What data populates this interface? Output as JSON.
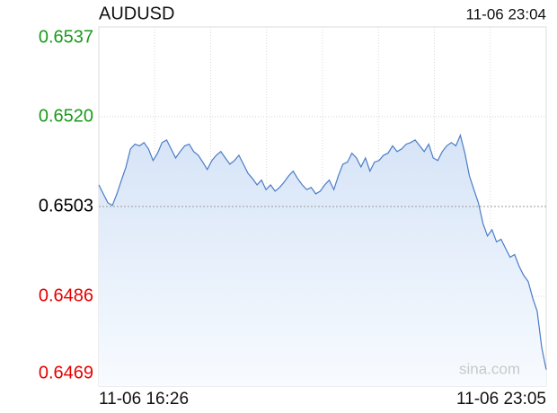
{
  "chart_data": {
    "type": "line",
    "title": "AUDUSD",
    "subtitle": "11-06 23:04",
    "watermark": "sina.com",
    "categories": [
      "11-06 16:26",
      null,
      null,
      null,
      null,
      null,
      null,
      null,
      null,
      null,
      null,
      null,
      null,
      null,
      null,
      null,
      null,
      null,
      null,
      null,
      null,
      null,
      null,
      null,
      null,
      null,
      null,
      null,
      null,
      null,
      null,
      null,
      null,
      null,
      null,
      null,
      null,
      null,
      null,
      null,
      null,
      null,
      null,
      null,
      null,
      null,
      null,
      null,
      null,
      null,
      null,
      null,
      null,
      null,
      null,
      null,
      null,
      null,
      null,
      null,
      null,
      null,
      null,
      null,
      null,
      null,
      null,
      null,
      null,
      null,
      null,
      null,
      null,
      null,
      null,
      null,
      null,
      null,
      null,
      null,
      null,
      null,
      null,
      null,
      null,
      null,
      null,
      null,
      null,
      null,
      null,
      null,
      null,
      null,
      null,
      null,
      null,
      null,
      null,
      "11-06 23:05"
    ],
    "series": [
      {
        "name": "AUDUSD",
        "color": "#4a7cc7",
        "values": [
          0.65071,
          0.65054,
          0.65037,
          0.65032,
          0.65054,
          0.6508,
          0.65105,
          0.65139,
          0.65148,
          0.65145,
          0.65151,
          0.65139,
          0.65117,
          0.65131,
          0.65151,
          0.65156,
          0.65139,
          0.65122,
          0.65134,
          0.65145,
          0.65148,
          0.65134,
          0.65127,
          0.65114,
          0.651,
          0.65117,
          0.65127,
          0.65134,
          0.65122,
          0.6511,
          0.65117,
          0.65127,
          0.6511,
          0.65093,
          0.65083,
          0.65071,
          0.6508,
          0.65062,
          0.65071,
          0.65059,
          0.65066,
          0.65076,
          0.65088,
          0.65097,
          0.65083,
          0.65071,
          0.65062,
          0.65066,
          0.65054,
          0.65059,
          0.65071,
          0.6508,
          0.65062,
          0.65088,
          0.6511,
          0.65114,
          0.65131,
          0.65122,
          0.65105,
          0.65122,
          0.65097,
          0.65114,
          0.65117,
          0.65127,
          0.65131,
          0.65145,
          0.65134,
          0.65139,
          0.65148,
          0.65151,
          0.65156,
          0.65145,
          0.65134,
          0.65148,
          0.65122,
          0.65117,
          0.65134,
          0.65145,
          0.65151,
          0.65145,
          0.65165,
          0.65131,
          0.65088,
          0.65062,
          0.65037,
          0.64998,
          0.64974,
          0.64986,
          0.64963,
          0.64968,
          0.64951,
          0.64934,
          0.64939,
          0.64917,
          0.649,
          0.64888,
          0.64857,
          0.64832,
          0.64763,
          0.64721
        ]
      }
    ],
    "ylim": [
      0.6469,
      0.6537
    ],
    "yticks": [
      0.6469,
      0.6486,
      0.6503,
      {
        "value": 0.652,
        "label": "0.6520"
      },
      0.6537
    ],
    "reference_line": 0.6503,
    "up_color": "#1a9a1a",
    "down_color": "#e60000",
    "flat_color": "#000000",
    "grid": true
  }
}
